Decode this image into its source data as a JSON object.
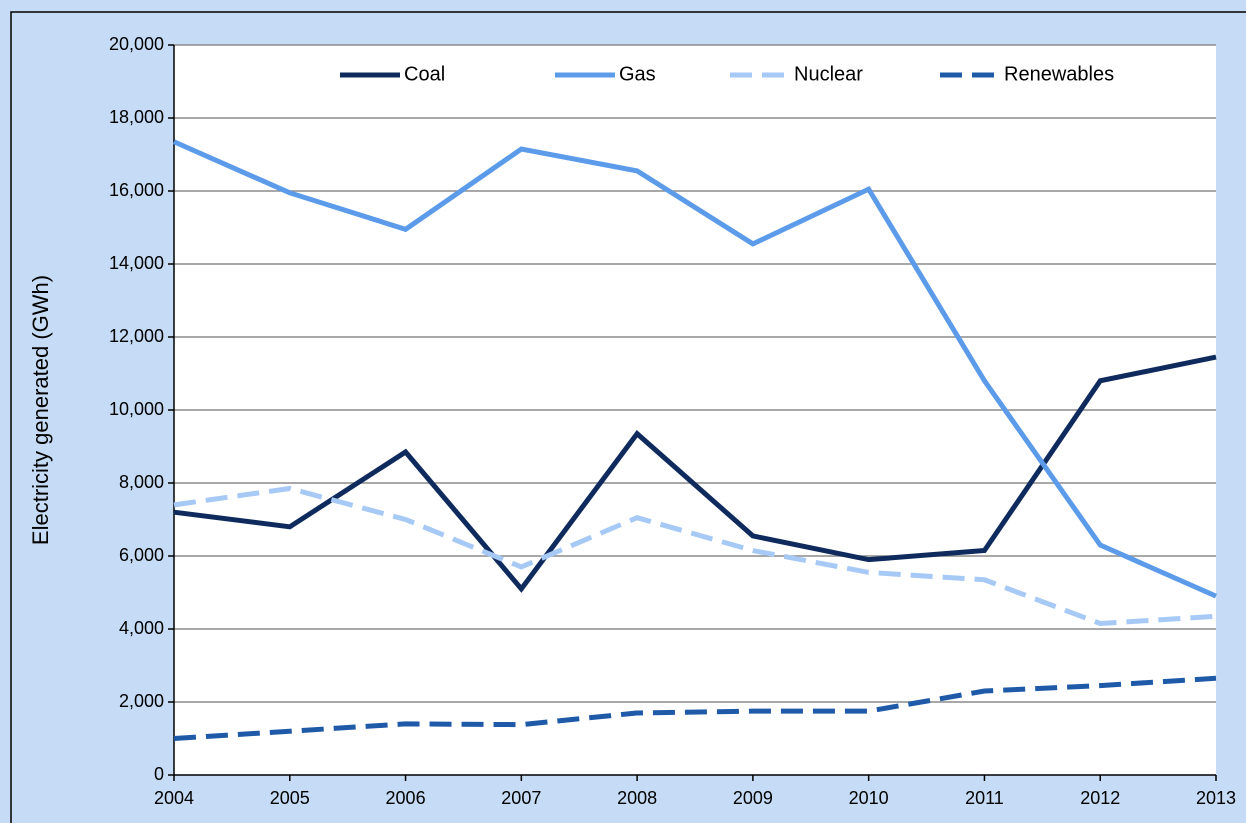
{
  "chart_data": {
    "type": "line",
    "ylabel": "Electricity generated (GWh)",
    "x": [
      2004,
      2005,
      2006,
      2007,
      2008,
      2009,
      2010,
      2011,
      2012,
      2013
    ],
    "xlim": [
      2004,
      2013
    ],
    "xticks": [
      2004,
      2005,
      2006,
      2007,
      2008,
      2009,
      2010,
      2011,
      2012,
      2013
    ],
    "ylim": [
      0,
      20000
    ],
    "yticks": [
      0,
      {
        "value": 2000,
        "label": "2,000"
      },
      {
        "value": 4000,
        "label": "4,000"
      },
      {
        "value": 6000,
        "label": "6,000"
      },
      {
        "value": 8000,
        "label": "8,000"
      },
      {
        "value": 10000,
        "label": "10,000"
      },
      {
        "value": 12000,
        "label": "12,000"
      },
      {
        "value": 14000,
        "label": "14,000"
      },
      {
        "value": 16000,
        "label": "16,000"
      },
      {
        "value": 18000,
        "label": "18,000"
      },
      {
        "value": 20000,
        "label": "20,000"
      }
    ],
    "grid": true,
    "legend": "top",
    "series": [
      {
        "name": "Coal",
        "color": "#0f2b5e",
        "dash": "solid",
        "values": [
          7200,
          6800,
          8850,
          5100,
          9350,
          6550,
          5900,
          6150,
          10800,
          11450
        ]
      },
      {
        "name": "Gas",
        "color": "#5b9bea",
        "dash": "solid",
        "values": [
          17350,
          15950,
          14950,
          17150,
          16550,
          14550,
          16050,
          10800,
          6300,
          4900
        ]
      },
      {
        "name": "Nuclear",
        "color": "#a7c9f5",
        "dash": "dashed",
        "values": [
          7400,
          7850,
          7000,
          5700,
          7050,
          6150,
          5550,
          5350,
          4150,
          4350
        ]
      },
      {
        "name": "Renewables",
        "color": "#1f5aa8",
        "dash": "dashed",
        "values": [
          1000,
          1200,
          1400,
          1380,
          1700,
          1750,
          1750,
          2300,
          2450,
          2650
        ]
      }
    ]
  }
}
